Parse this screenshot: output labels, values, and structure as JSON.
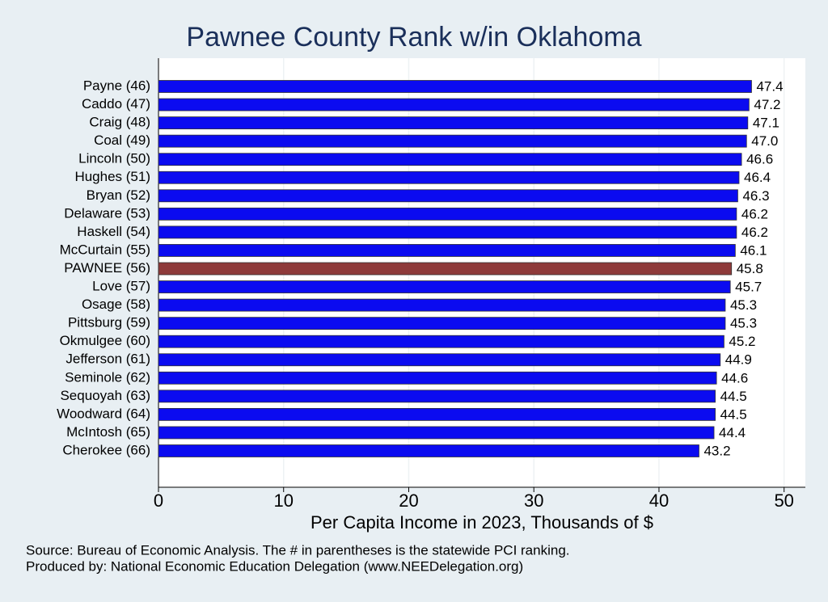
{
  "chart_data": {
    "type": "bar",
    "orientation": "horizontal",
    "title": "Pawnee County Rank w/in Oklahoma",
    "categories": [
      "Payne (46)",
      "Caddo (47)",
      "Craig (48)",
      "Coal (49)",
      "Lincoln (50)",
      "Hughes (51)",
      "Bryan (52)",
      "Delaware (53)",
      "Haskell (54)",
      "McCurtain (55)",
      "PAWNEE (56)",
      "Love (57)",
      "Osage (58)",
      "Pittsburg (59)",
      "Okmulgee (60)",
      "Jefferson (61)",
      "Seminole (62)",
      "Sequoyah (63)",
      "Woodward (64)",
      "McIntosh (65)",
      "Cherokee (66)"
    ],
    "values": [
      47.4,
      47.2,
      47.1,
      47.0,
      46.6,
      46.4,
      46.3,
      46.2,
      46.2,
      46.1,
      45.8,
      45.7,
      45.3,
      45.3,
      45.2,
      44.9,
      44.6,
      44.5,
      44.5,
      44.4,
      43.2
    ],
    "value_labels": [
      "47.4",
      "47.2",
      "47.1",
      "47.0",
      "46.6",
      "46.4",
      "46.3",
      "46.2",
      "46.2",
      "46.1",
      "45.8",
      "45.7",
      "45.3",
      "45.3",
      "45.2",
      "44.9",
      "44.6",
      "44.5",
      "44.5",
      "44.4",
      "43.2"
    ],
    "colors": [
      "#0b0bf0",
      "#0b0bf0",
      "#0b0bf0",
      "#0b0bf0",
      "#0b0bf0",
      "#0b0bf0",
      "#0b0bf0",
      "#0b0bf0",
      "#0b0bf0",
      "#0b0bf0",
      "#8e3a3a",
      "#0b0bf0",
      "#0b0bf0",
      "#0b0bf0",
      "#0b0bf0",
      "#0b0bf0",
      "#0b0bf0",
      "#0b0bf0",
      "#0b0bf0",
      "#0b0bf0",
      "#0b0bf0"
    ],
    "xlabel": "Per Capita Income in 2023, Thousands of $",
    "xlim": [
      0,
      51.7
    ],
    "xticks": [
      0,
      10,
      20,
      30,
      40,
      50
    ],
    "grid": true,
    "notes": [
      "Source: Bureau of Economic Analysis. The # in parentheses is the statewide PCI ranking.",
      "Produced by: National Economic Education Delegation (www.NEEDelegation.org)"
    ]
  }
}
